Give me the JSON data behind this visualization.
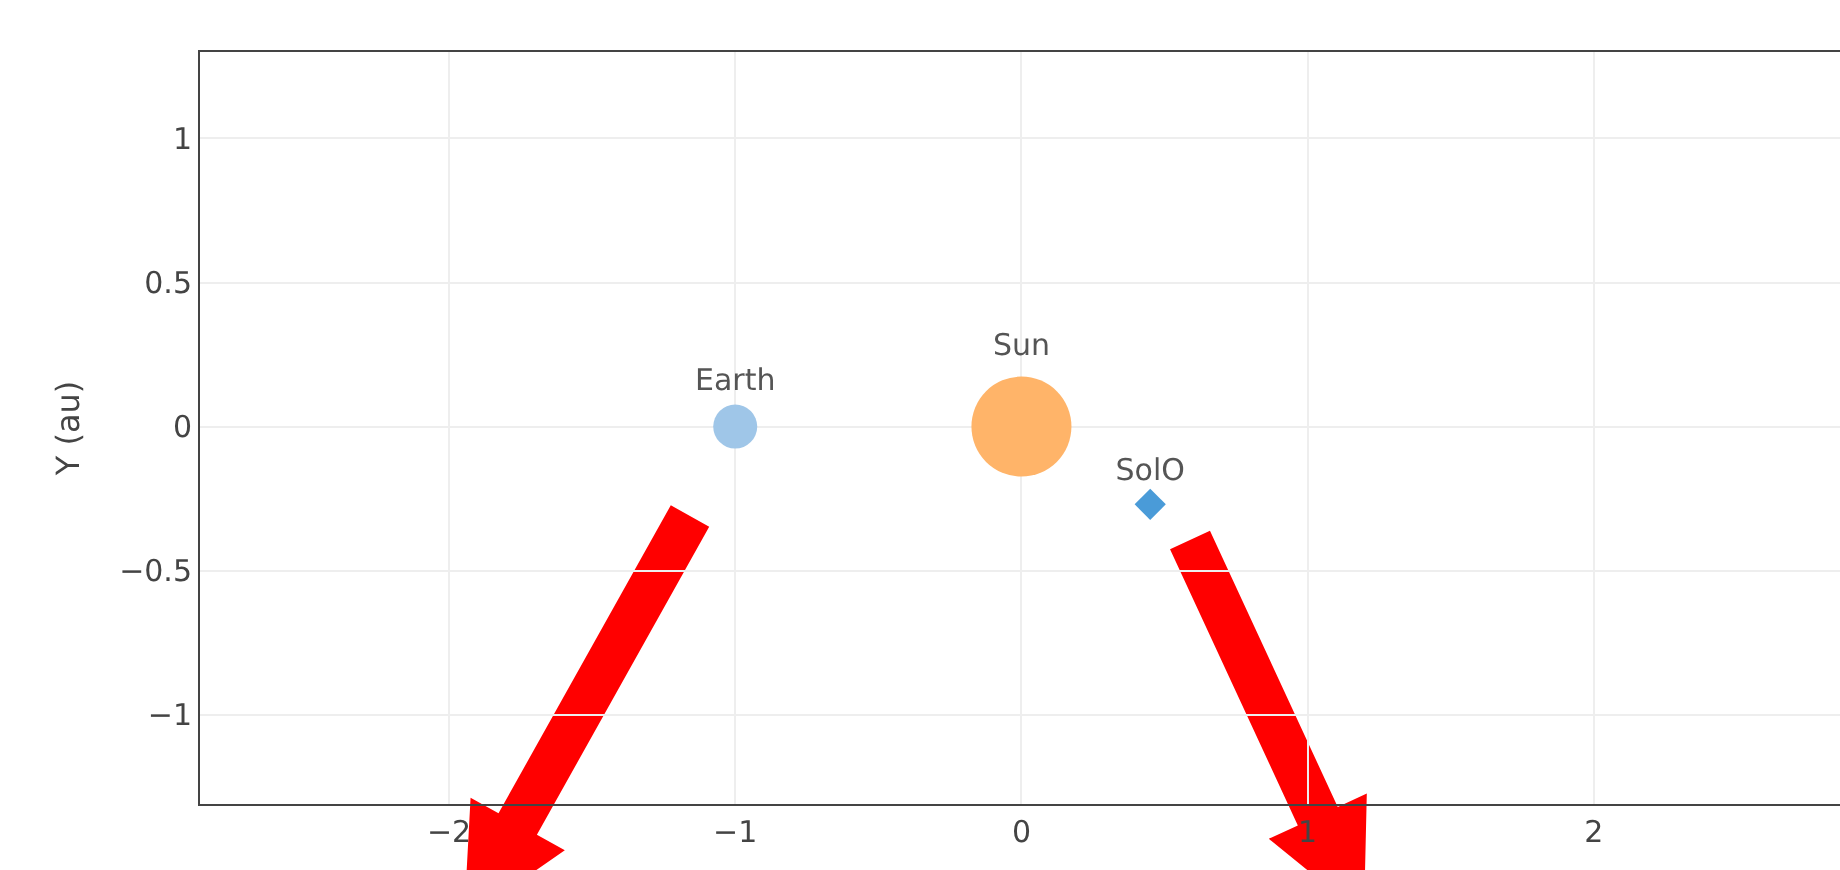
{
  "chart_data": {
    "type": "scatter",
    "ylabel": "Y (au)",
    "series": [
      {
        "name": "Earth",
        "color": "#9fc6e8",
        "marker": "circle",
        "x": [
          -1
        ],
        "values": [
          0
        ]
      },
      {
        "name": "Sun",
        "color": "#ffb469",
        "marker": "circle",
        "x": [
          0
        ],
        "values": [
          0
        ]
      },
      {
        "name": "SolO",
        "color": "#4a9bd8",
        "marker": "diamond",
        "x": [
          0.45
        ],
        "values": [
          -0.27
        ]
      }
    ],
    "xlim": [
      -2.87,
      2.86
    ],
    "xticks": [
      -2,
      -1,
      0,
      1,
      2
    ],
    "ylim": [
      -1.31,
      1.3
    ],
    "yticks": [
      -1,
      -0.5,
      0,
      0.5,
      1
    ],
    "grid": true,
    "legend": false
  }
}
